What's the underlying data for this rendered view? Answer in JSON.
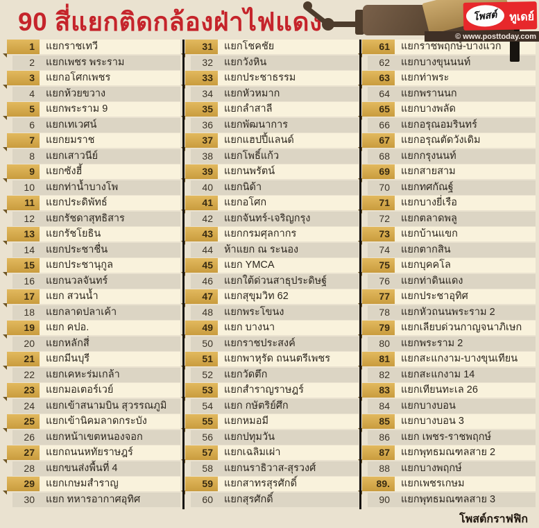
{
  "header": {
    "title": "90 สี่แยกติดกล้องฝ่าไฟแดง",
    "logo_text_1": "โพสต์",
    "logo_text_2": "ทูเดย์",
    "website": "© www.posttoday.com"
  },
  "footer": {
    "credit": "โพสต์กราฟฟิก"
  },
  "list": {
    "columns": [
      {
        "items": [
          {
            "no": "1",
            "name": "แยกราชเทวี"
          },
          {
            "no": "2",
            "name": "แยกเพชร พระราม"
          },
          {
            "no": "3",
            "name": "แยกอโศกเพชร"
          },
          {
            "no": "4",
            "name": "แยกห้วยขวาง"
          },
          {
            "no": "5",
            "name": "แยกพระราม 9"
          },
          {
            "no": "6",
            "name": "แยกเทเวศน์"
          },
          {
            "no": "7",
            "name": "แยกยมราช"
          },
          {
            "no": "8",
            "name": "แยกเสาวนีย์"
          },
          {
            "no": "9",
            "name": "แยกซังฮี้"
          },
          {
            "no": "10",
            "name": "แยกท่าน้ำบางโพ"
          },
          {
            "no": "11",
            "name": "แยกประดิพัทธ์"
          },
          {
            "no": "12",
            "name": "แยกรัชดาสุทธิสาร"
          },
          {
            "no": "13",
            "name": "แยกรัชโยธิน"
          },
          {
            "no": "14",
            "name": "แยกประชาชื่น"
          },
          {
            "no": "15",
            "name": "แยกประชานุกูล"
          },
          {
            "no": "16",
            "name": "แยกนวลจันทร์"
          },
          {
            "no": "17",
            "name": "แยก สวนน้ำ"
          },
          {
            "no": "18",
            "name": "แยกลาดปลาเค้า"
          },
          {
            "no": "19",
            "name": "แยก คปอ."
          },
          {
            "no": "20",
            "name": "แยกหลักสี่"
          },
          {
            "no": "21",
            "name": "แยกมีนบุรี"
          },
          {
            "no": "22",
            "name": "แยกเคหะร่มเกล้า"
          },
          {
            "no": "23",
            "name": "แยกมอเตอร์เวย์"
          },
          {
            "no": "24",
            "name": "แยกเข้าสนามบิน สุวรรณภูมิ"
          },
          {
            "no": "25",
            "name": "แยกเข้านิคมลาดกระบัง"
          },
          {
            "no": "26",
            "name": "แยกหน้าเขตหนองจอก"
          },
          {
            "no": "27",
            "name": "แยกถนนหทัยราษฎร์"
          },
          {
            "no": "28",
            "name": "แยกขนส่งพื้นที่ 4"
          },
          {
            "no": "29",
            "name": "แยกเกษมสำราญ"
          },
          {
            "no": "30",
            "name": "แยก ทหารอากาศอุทิศ"
          }
        ]
      },
      {
        "items": [
          {
            "no": "31",
            "name": "แยกโชคชัย"
          },
          {
            "no": "32",
            "name": "แยกวังหิน"
          },
          {
            "no": "33",
            "name": "แยกประชาธรรม"
          },
          {
            "no": "34",
            "name": "แยกหัวหมาก"
          },
          {
            "no": "35",
            "name": "แยกลำสาลี"
          },
          {
            "no": "36",
            "name": "แยกพัฒนาการ"
          },
          {
            "no": "37",
            "name": "แยกแฮปปี้แลนด์"
          },
          {
            "no": "38",
            "name": "แยกโพธิ์แก้ว"
          },
          {
            "no": "39",
            "name": "แยกนพรัตน์"
          },
          {
            "no": "40",
            "name": "แยกนิด้า"
          },
          {
            "no": "41",
            "name": "แยกอโศก"
          },
          {
            "no": "42",
            "name": "แยกจันทร์-เจริญกรุง"
          },
          {
            "no": "43",
            "name": "แยกกรมศุลกากร"
          },
          {
            "no": "44",
            "name": "ห้าแยก ณ ระนอง"
          },
          {
            "no": "45",
            "name": "แยก YMCA"
          },
          {
            "no": "46",
            "name": "แยกใต้ด่วนสาธุประดิษฐ์"
          },
          {
            "no": "47",
            "name": "แยกสุขุมวิท 62"
          },
          {
            "no": "48",
            "name": "แยกพระโขนง"
          },
          {
            "no": "49",
            "name": "แยก บางนา"
          },
          {
            "no": "50",
            "name": "แยกราชประสงค์"
          },
          {
            "no": "51",
            "name": "แยกพาหุรัด ถนนตรีเพชร"
          },
          {
            "no": "52",
            "name": "แยกวัดตึก"
          },
          {
            "no": "53",
            "name": "แยกสำราญราษฎร์"
          },
          {
            "no": "54",
            "name": "แยก กษัตริย์ศึก"
          },
          {
            "no": "55",
            "name": "แยกหมอมี"
          },
          {
            "no": "56",
            "name": "แยกปทุมวัน"
          },
          {
            "no": "57",
            "name": "แยกเฉลิมเผ่า"
          },
          {
            "no": "58",
            "name": "แยกนราธิวาส-สุรวงศ์"
          },
          {
            "no": "59",
            "name": "แยกสาทรสุรศักดิ์"
          },
          {
            "no": "60",
            "name": "แยกสุรศักดิ์"
          }
        ]
      },
      {
        "items": [
          {
            "no": "61",
            "name": "แยกราชพฤกษ์-บางแวก"
          },
          {
            "no": "62",
            "name": "แยกบางขุนนนท์"
          },
          {
            "no": "63",
            "name": "แยกท่าพระ"
          },
          {
            "no": "64",
            "name": "แยกพรานนก"
          },
          {
            "no": "65",
            "name": "แยกบางพลัด"
          },
          {
            "no": "66",
            "name": "แยกอรุณอมรินทร์"
          },
          {
            "no": "67",
            "name": "แยกอรุณตัดวังเดิม"
          },
          {
            "no": "68",
            "name": "แยกกรุงนนท์"
          },
          {
            "no": "69",
            "name": "แยกสายสาม"
          },
          {
            "no": "70",
            "name": "แยกทศกัณฐ์"
          },
          {
            "no": "71",
            "name": "แยกบางยี่เรือ"
          },
          {
            "no": "72",
            "name": "แยกตลาดพลู"
          },
          {
            "no": "73",
            "name": "แยกบ้านแขก"
          },
          {
            "no": "74",
            "name": "แยกตากสิน"
          },
          {
            "no": "75",
            "name": "แยกบุคคโล"
          },
          {
            "no": "76",
            "name": "แยกท่าดินแดง"
          },
          {
            "no": "77",
            "name": "แยกประชาอุทิศ"
          },
          {
            "no": "78",
            "name": "แยกหัวถนนพระราม 2"
          },
          {
            "no": "79",
            "name": "แยกเลียบด่วนกาญจนาภิเษก"
          },
          {
            "no": "80",
            "name": "แยกพระราม 2"
          },
          {
            "no": "81",
            "name": "แยกสะแกงาม-บางขุนเทียน"
          },
          {
            "no": "82",
            "name": "แยกสะแกงาม 14"
          },
          {
            "no": "83",
            "name": "แยกเทียนทะเล 26"
          },
          {
            "no": "84",
            "name": "แยกบางบอน"
          },
          {
            "no": "85",
            "name": "แยกบางบอน 3"
          },
          {
            "no": "86",
            "name": "แยก เพชร-ราชพฤกษ์"
          },
          {
            "no": "87",
            "name": "แยกพุทธมณฑลสาย 2"
          },
          {
            "no": "88",
            "name": "แยกบางพฤกษ์"
          },
          {
            "no": "89.",
            "name": "แยกเพชรเกษม"
          },
          {
            "no": "90",
            "name": "แยกพุทธมณฑลสาย 3"
          }
        ]
      }
    ]
  }
}
